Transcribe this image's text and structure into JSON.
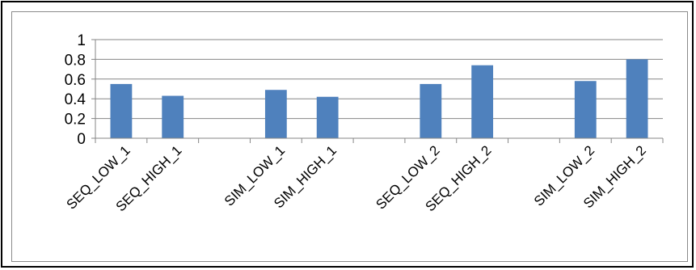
{
  "chart_data": {
    "type": "bar",
    "title": "",
    "xlabel": "",
    "ylabel": "",
    "ylim": [
      0,
      1
    ],
    "yticks": [
      "0",
      "0.2",
      "0.4",
      "0.6",
      "0.8",
      "1"
    ],
    "grid": true,
    "legend": "none",
    "categories": [
      "SEQ_LOW_1",
      "SEQ_HIGH_1",
      "",
      "SIM_LOW_1",
      "SIM_HIGH_1",
      "",
      "SEQ_LOW_2",
      "SEQ_HIGH_2",
      "",
      "SIM_LOW_2",
      "SIM_HIGH_2"
    ],
    "values": [
      0.55,
      0.43,
      null,
      0.49,
      0.42,
      null,
      0.55,
      0.74,
      null,
      0.58,
      0.8
    ],
    "bar_color": "#4f81bd",
    "grid_color": "#868686"
  }
}
